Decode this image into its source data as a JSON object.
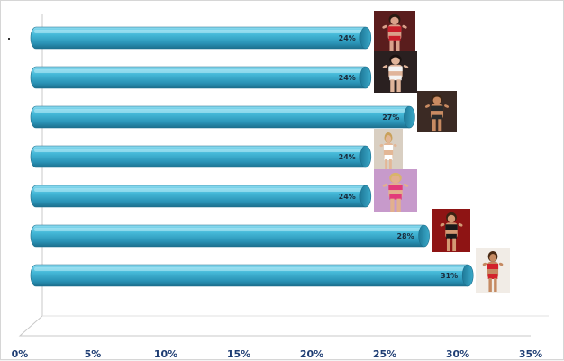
{
  "chart_data": {
    "type": "bar",
    "orientation": "horizontal",
    "title": "",
    "xlabel": "",
    "ylabel": "",
    "xlim": [
      0,
      35
    ],
    "x_ticks": [
      "0%",
      "5%",
      "10%",
      "15%",
      "20%",
      "25%",
      "30%",
      "35%"
    ],
    "grid": false,
    "legend": "none",
    "bar_color": "#3fb3d2",
    "series": [
      {
        "values": [
          24,
          24,
          27,
          24,
          24,
          28,
          31
        ]
      }
    ],
    "data_labels": [
      "24%",
      "24%",
      "27%",
      "24%",
      "24%",
      "28%",
      "31%"
    ],
    "bar_images": [
      "photo-woman-red-outfit",
      "photo-woman-white-outfit",
      "photo-woman-dark-outfit",
      "photo-woman-white-bikini",
      "photo-woman-pink-outfit",
      "photo-woman-red-background",
      "photo-woman-red-skirt-dancing"
    ]
  }
}
